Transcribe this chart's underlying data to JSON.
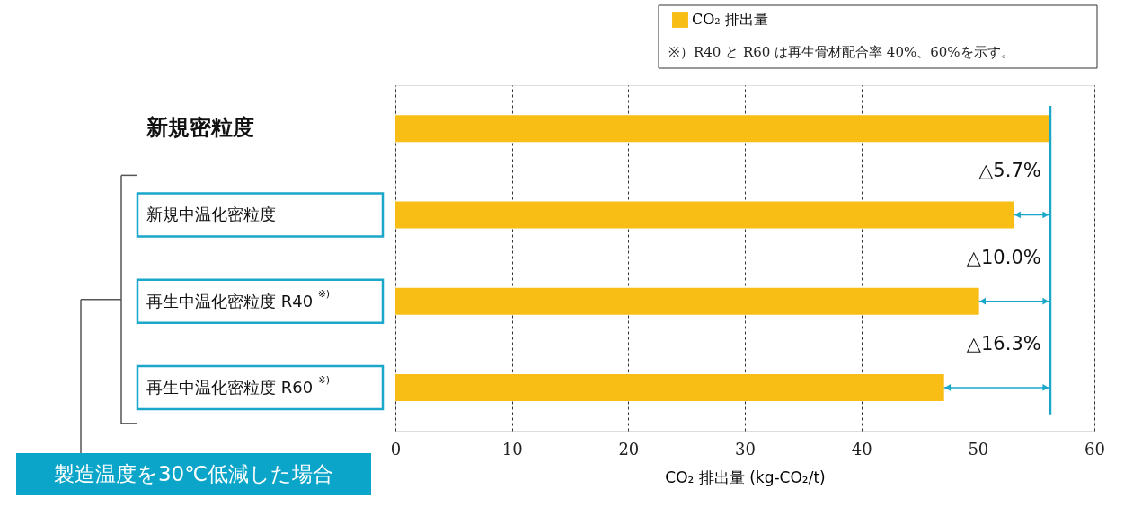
{
  "chart_data": {
    "type": "bar",
    "orientation": "horizontal",
    "xlabel": "CO₂ 排出量 (kg-CO₂/t)",
    "categories": [
      "新規密粒度",
      "新規中温化密粒度",
      "再生中温化密粒度 R40$^{※)}$",
      "再生中温化密粒度 R60$^{※)}$"
    ],
    "series": [
      {
        "name": "CO₂ 排出量",
        "color": "#f8be15",
        "values": [
          56.2,
          53.1,
          50.1,
          47.1
        ]
      }
    ],
    "xlim": [
      0,
      60
    ],
    "xticks": [
      0,
      10,
      20,
      30,
      40,
      50,
      60
    ],
    "grid": "x",
    "legend": "top right",
    "ref_lines": [
      {
        "axis": "x",
        "value": 56.2,
        "color": "#1aa7c9"
      }
    ],
    "annotations": [
      "△5.7%",
      "△10.0%",
      "△16.3%",
      "製造温度を30℃低減した場合",
      "※）R40 と R60 は再生骨材配合率 40%、60%を示す。"
    ]
  }
}
